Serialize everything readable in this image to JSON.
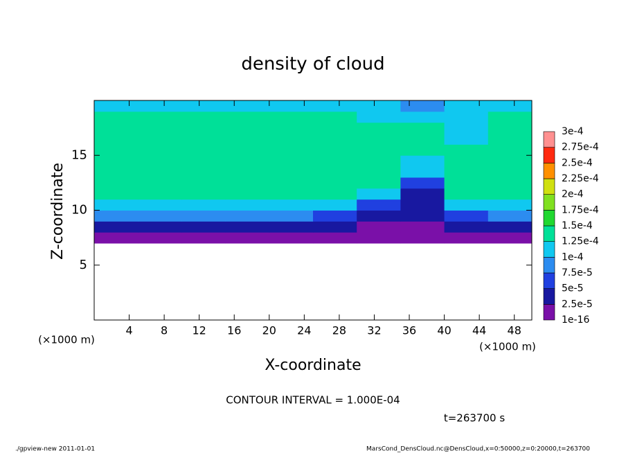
{
  "chart_data": {
    "type": "contour",
    "title": "density of cloud",
    "x_label": "X-coordinate",
    "y_label": "Z-coordinate",
    "x_unit": "(×1000 m)",
    "y_unit": "(×1000 m)",
    "contour_note": "CONTOUR INTERVAL = 1.000E-04",
    "time_label": "t=263700 s",
    "footer_left": "./gpview-new   2011-01-01",
    "footer_right": "MarsCond_DensCloud.nc@DensCloud,x=0:50000,z=0:20000,t=263700",
    "xlim": [
      0,
      50
    ],
    "ylim": [
      0,
      20
    ],
    "xticks": [
      4,
      8,
      12,
      16,
      20,
      24,
      28,
      32,
      36,
      40,
      44,
      48
    ],
    "yticks": [
      5,
      10,
      15
    ],
    "x": [
      2.5,
      7.5,
      12.5,
      17.5,
      22.5,
      27.5,
      32.5,
      37.5,
      42.5,
      47.5
    ],
    "y": [
      0.5,
      1.5,
      2.5,
      3.5,
      4.5,
      5.5,
      6.5,
      7.5,
      8.5,
      9.5,
      10.5,
      11.5,
      12.5,
      13.5,
      14.5,
      15.5,
      16.5,
      17.5,
      18.5,
      19.5
    ],
    "z": [
      [
        null,
        null,
        null,
        null,
        null,
        null,
        null,
        null,
        null,
        null
      ],
      [
        null,
        null,
        null,
        null,
        null,
        null,
        null,
        null,
        null,
        null
      ],
      [
        null,
        null,
        null,
        null,
        null,
        null,
        null,
        null,
        null,
        null
      ],
      [
        null,
        null,
        null,
        null,
        null,
        null,
        null,
        null,
        null,
        null
      ],
      [
        null,
        null,
        null,
        null,
        null,
        null,
        null,
        null,
        null,
        null
      ],
      [
        null,
        null,
        null,
        null,
        null,
        null,
        null,
        null,
        null,
        null
      ],
      [
        null,
        null,
        null,
        null,
        null,
        null,
        null,
        null,
        null,
        null
      ],
      [
        1e-05,
        1e-05,
        1e-05,
        1e-05,
        1e-05,
        1e-05,
        1e-05,
        1e-05,
        1e-05,
        1e-05
      ],
      [
        4e-05,
        4e-05,
        4e-05,
        4e-05,
        4e-05,
        4e-05,
        2e-05,
        2e-05,
        4e-05,
        4e-05
      ],
      [
        8e-05,
        8e-05,
        8e-05,
        8e-05,
        8e-05,
        7e-05,
        3e-05,
        3e-05,
        7e-05,
        8e-05
      ],
      [
        0.00011,
        0.00011,
        0.00011,
        0.00011,
        0.00011,
        0.000105,
        6e-05,
        4e-05,
        0.00011,
        0.00011
      ],
      [
        0.00013,
        0.00013,
        0.00013,
        0.00013,
        0.00013,
        0.00013,
        0.00011,
        4e-05,
        0.00013,
        0.00013
      ],
      [
        0.00013,
        0.00013,
        0.00013,
        0.00013,
        0.00013,
        0.00013,
        0.00013,
        5e-05,
        0.00013,
        0.00013
      ],
      [
        0.000135,
        0.000135,
        0.000135,
        0.000135,
        0.000135,
        0.000135,
        0.00013,
        0.0001,
        0.00013,
        0.000135
      ],
      [
        0.00014,
        0.00014,
        0.00014,
        0.00014,
        0.00014,
        0.00014,
        0.00013,
        0.00012,
        0.00013,
        0.00014
      ],
      [
        0.00014,
        0.00014,
        0.00014,
        0.00014,
        0.00014,
        0.00014,
        0.000135,
        0.00013,
        0.00013,
        0.00014
      ],
      [
        0.000135,
        0.000135,
        0.000135,
        0.000135,
        0.000135,
        0.000135,
        0.00013,
        0.00013,
        0.00012,
        0.000135
      ],
      [
        0.00013,
        0.00013,
        0.00013,
        0.00013,
        0.00013,
        0.00013,
        0.00013,
        0.00013,
        0.00011,
        0.00013
      ],
      [
        0.000125,
        0.000125,
        0.000125,
        0.000125,
        0.000125,
        0.000125,
        0.00011,
        0.00011,
        0.000105,
        0.000125
      ],
      [
        0.00011,
        0.00011,
        0.00011,
        0.00011,
        0.00011,
        0.00011,
        0.000105,
        8e-05,
        0.000105,
        0.00011
      ]
    ],
    "levels": [
      {
        "value": 1e-16,
        "label": "1e-16"
      },
      {
        "value": 2.5e-05,
        "label": "2.5e-5"
      },
      {
        "value": 5e-05,
        "label": "5e-5"
      },
      {
        "value": 7.5e-05,
        "label": "7.5e-5"
      },
      {
        "value": 0.0001,
        "label": "1e-4"
      },
      {
        "value": 0.000125,
        "label": "1.25e-4"
      },
      {
        "value": 0.00015,
        "label": "1.5e-4"
      },
      {
        "value": 0.000175,
        "label": "1.75e-4"
      },
      {
        "value": 0.0002,
        "label": "2e-4"
      },
      {
        "value": 0.000225,
        "label": "2.25e-4"
      },
      {
        "value": 0.00025,
        "label": "2.5e-4"
      },
      {
        "value": 0.000275,
        "label": "2.75e-4"
      },
      {
        "value": 0.0003,
        "label": "3e-4"
      }
    ],
    "colors": [
      "#7a10a8",
      "#1818a0",
      "#2040e0",
      "#2c8cf0",
      "#10c8f0",
      "#00e098",
      "#20d830",
      "#80e020",
      "#d0e010",
      "#ff9000",
      "#ff2a10",
      "#ff9090"
    ]
  }
}
